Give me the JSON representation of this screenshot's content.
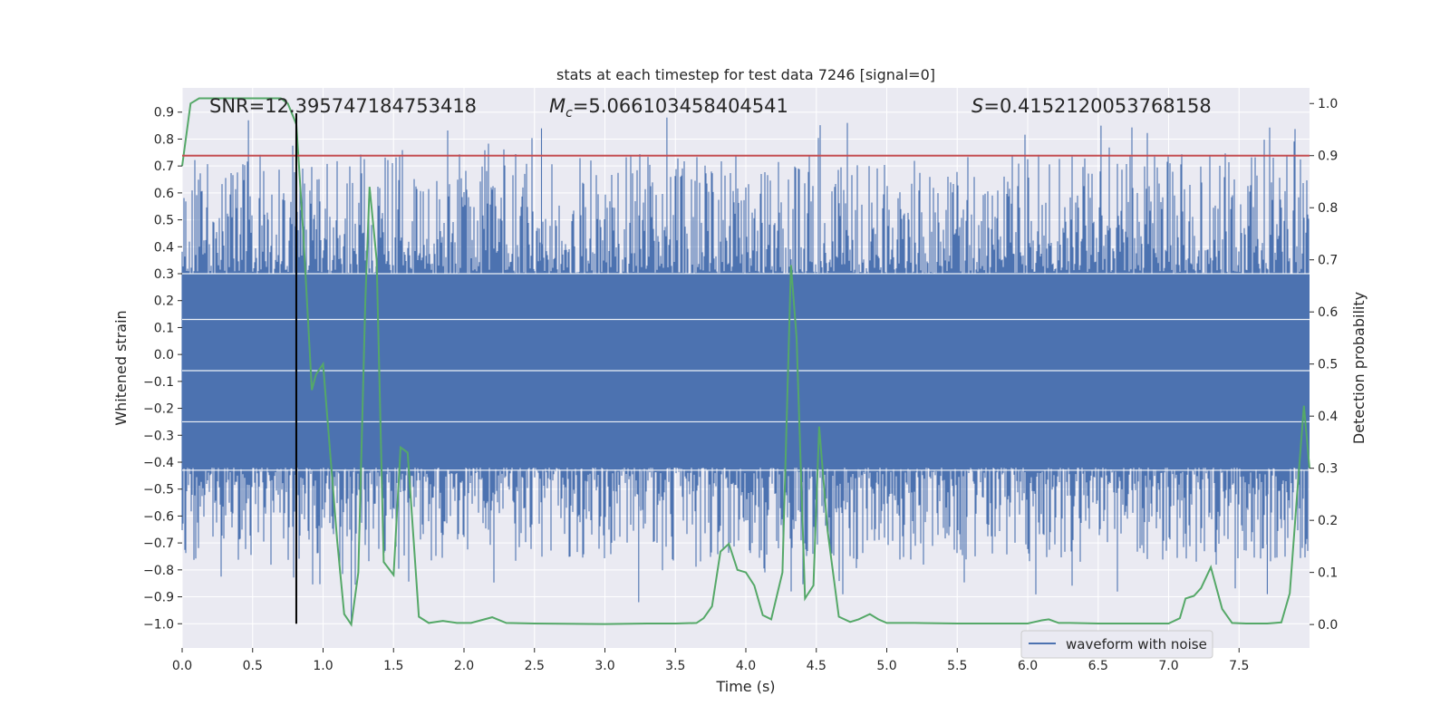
{
  "chart_data": {
    "type": "line",
    "title": "stats at each timestep for test data 7246 [signal=0]",
    "xlabel": "Time (s)",
    "ylabel": "Whitened strain",
    "y2label": "Detection probability",
    "xlim": [
      0.0,
      8.0
    ],
    "ylim": [
      -1.09,
      0.99
    ],
    "y2lim": [
      -0.045,
      1.03
    ],
    "x_ticks": [
      "0.0",
      "0.5",
      "1.0",
      "1.5",
      "2.0",
      "2.5",
      "3.0",
      "3.5",
      "4.0",
      "4.5",
      "5.0",
      "5.5",
      "6.0",
      "6.5",
      "7.0",
      "7.5"
    ],
    "y_ticks": [
      "0.9",
      "0.8",
      "0.7",
      "0.6",
      "0.5",
      "0.4",
      "0.3",
      "0.2",
      "0.1",
      "0.0",
      "−0.1",
      "−0.2",
      "−0.3",
      "−0.4",
      "−0.5",
      "−0.6",
      "−0.7",
      "−0.8",
      "−0.9",
      "−1.0"
    ],
    "y2_ticks": [
      "1.0",
      "0.9",
      "0.8",
      "0.7",
      "0.6",
      "0.5",
      "0.4",
      "0.3",
      "0.2",
      "0.1",
      "0.0"
    ],
    "threshold": 0.9,
    "marker_time": 0.81,
    "annotations": {
      "snr": "SNR=12.395747184753418",
      "mc_symbol": "M",
      "mc_sub": "c",
      "mc_value": "=5.066103458404541",
      "s_symbol": "S",
      "s_value": "=0.4152120053768158"
    },
    "legend": {
      "label": "waveform with noise",
      "location": "lower right"
    },
    "waveform": {
      "name": "waveform with noise",
      "color": "#4c72b0",
      "envelope_note": "noisy strain spanning roughly -0.9 to 0.9",
      "max_peak": 0.89,
      "min_trough": -1.0
    },
    "series": [
      {
        "name": "detection probability",
        "color": "#55a868",
        "x": [
          0.0,
          0.06,
          0.12,
          0.2,
          0.3,
          0.4,
          0.5,
          0.6,
          0.7,
          0.75,
          0.81,
          0.86,
          0.92,
          0.95,
          1.0,
          1.05,
          1.1,
          1.15,
          1.2,
          1.25,
          1.3,
          1.33,
          1.38,
          1.43,
          1.5,
          1.55,
          1.6,
          1.68,
          1.75,
          1.85,
          1.95,
          2.05,
          2.2,
          2.3,
          2.5,
          3.0,
          3.3,
          3.5,
          3.65,
          3.7,
          3.76,
          3.82,
          3.88,
          3.94,
          4.0,
          4.06,
          4.12,
          4.18,
          4.26,
          4.32,
          4.36,
          4.42,
          4.48,
          4.52,
          4.58,
          4.66,
          4.74,
          4.8,
          4.88,
          4.94,
          5.0,
          5.2,
          5.5,
          6.0,
          6.1,
          6.15,
          6.22,
          6.3,
          6.5,
          6.9,
          7.0,
          7.08,
          7.12,
          7.18,
          7.23,
          7.3,
          7.38,
          7.45,
          7.55,
          7.7,
          7.8,
          7.86,
          7.92,
          7.96,
          8.0
        ],
        "y": [
          0.88,
          1.0,
          1.01,
          1.01,
          1.01,
          1.01,
          1.01,
          1.01,
          1.01,
          1.0,
          0.96,
          0.75,
          0.45,
          0.48,
          0.5,
          0.33,
          0.16,
          0.02,
          0.0,
          0.1,
          0.62,
          0.84,
          0.7,
          0.12,
          0.095,
          0.34,
          0.33,
          0.015,
          0.003,
          0.007,
          0.003,
          0.003,
          0.014,
          0.003,
          0.002,
          0.001,
          0.002,
          0.002,
          0.003,
          0.012,
          0.035,
          0.14,
          0.155,
          0.105,
          0.1,
          0.075,
          0.018,
          0.01,
          0.1,
          0.69,
          0.55,
          0.05,
          0.075,
          0.38,
          0.18,
          0.015,
          0.005,
          0.01,
          0.02,
          0.01,
          0.003,
          0.003,
          0.002,
          0.002,
          0.008,
          0.01,
          0.003,
          0.003,
          0.002,
          0.002,
          0.002,
          0.012,
          0.05,
          0.055,
          0.07,
          0.11,
          0.03,
          0.003,
          0.002,
          0.002,
          0.004,
          0.06,
          0.28,
          0.42,
          0.3
        ]
      },
      {
        "name": "threshold",
        "color": "#c44e52",
        "x": [
          0.0,
          8.0
        ],
        "y": [
          0.9,
          0.9
        ]
      }
    ]
  }
}
